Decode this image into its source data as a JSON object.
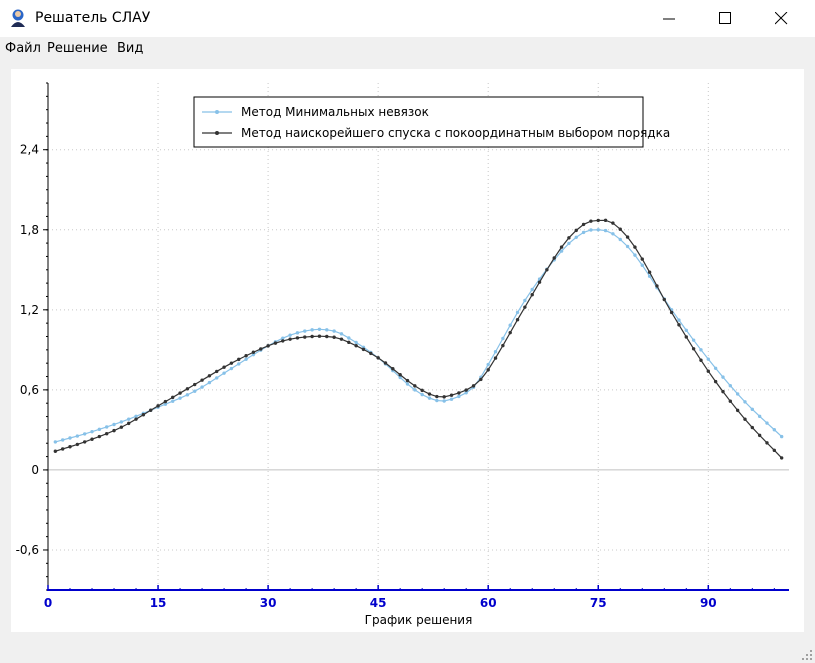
{
  "window": {
    "title": "Решатель СЛАУ",
    "icon": "app-user-icon",
    "controls": [
      "minimize-icon",
      "maximize-icon",
      "close-icon"
    ]
  },
  "menu": {
    "items": [
      "Файл",
      "Решение",
      "Вид"
    ]
  },
  "chart_data": {
    "type": "line",
    "xlabel": "График решения",
    "ylabel": "",
    "xlim": [
      0,
      101
    ],
    "ylim": [
      -0.9,
      2.9
    ],
    "x_ticks": [
      0,
      15,
      30,
      45,
      60,
      75,
      90
    ],
    "x_tick_labels": [
      "0",
      "15",
      "30",
      "45",
      "60",
      "75",
      "90"
    ],
    "y_ticks": [
      -0.6,
      0,
      0.6,
      1.2,
      1.8,
      2.4
    ],
    "y_tick_labels": [
      "-0,6",
      "0",
      "0,6",
      "1,2",
      "1,8",
      "2,4"
    ],
    "grid": true,
    "legend_position": "top",
    "x_axis_color": "#0000cc",
    "series": [
      {
        "name": "Метод Минимальных невязок",
        "color": "#87c1e8",
        "x": [
          1,
          5,
          10,
          15,
          20,
          25,
          30,
          33,
          36,
          38,
          40,
          45,
          50,
          53,
          55,
          58,
          60,
          65,
          70,
          73,
          75,
          77,
          80,
          85,
          90,
          95,
          100
        ],
        "y": [
          0.21,
          0.27,
          0.36,
          0.47,
          0.59,
          0.76,
          0.93,
          1.01,
          1.05,
          1.05,
          1.02,
          0.84,
          0.6,
          0.52,
          0.53,
          0.62,
          0.79,
          1.27,
          1.64,
          1.78,
          1.8,
          1.77,
          1.61,
          1.2,
          0.83,
          0.51,
          0.25
        ]
      },
      {
        "name": "Метод наискорейшего спуска с покоординатным выбором порядка",
        "color": "#333333",
        "x": [
          1,
          5,
          10,
          15,
          20,
          25,
          30,
          33,
          36,
          38,
          40,
          45,
          50,
          53,
          55,
          58,
          60,
          65,
          70,
          73,
          75,
          77,
          80,
          85,
          90,
          95,
          100
        ],
        "y": [
          0.14,
          0.21,
          0.32,
          0.48,
          0.64,
          0.8,
          0.93,
          0.98,
          1.0,
          1.0,
          0.98,
          0.84,
          0.63,
          0.55,
          0.56,
          0.63,
          0.75,
          1.22,
          1.67,
          1.84,
          1.87,
          1.85,
          1.67,
          1.18,
          0.74,
          0.38,
          0.09
        ]
      }
    ]
  }
}
